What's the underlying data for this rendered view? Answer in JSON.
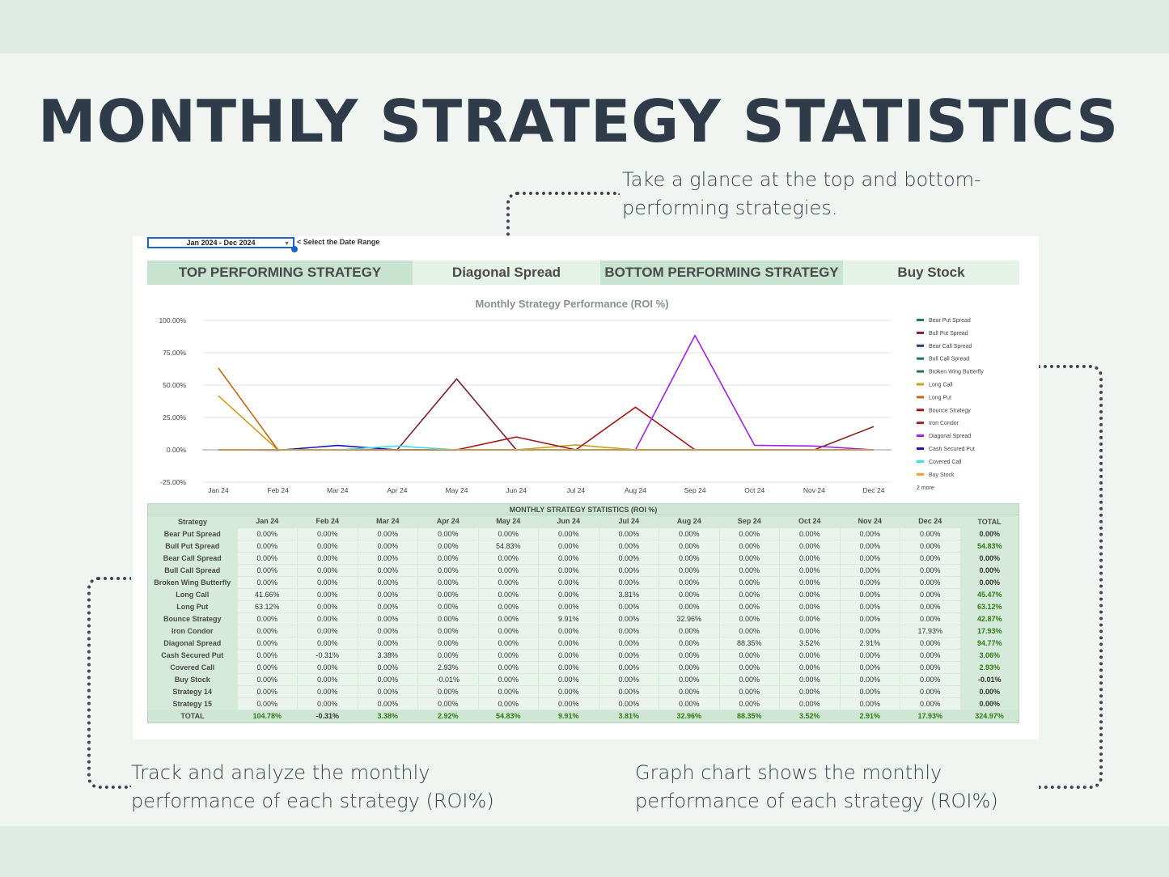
{
  "title": "MONTHLY STRATEGY STATISTICS",
  "captions": {
    "top": "Take a glance at the top and bottom-performing strategies.",
    "left": "Track and analyze the monthly performance of each strategy (ROI%)",
    "right": "Graph chart shows the monthly performance of each strategy (ROI%)"
  },
  "sheet": {
    "date_range_value": "Jan 2024 - Dec 2024",
    "date_range_hint": "< Select the Date Range",
    "top_label": "TOP PERFORMING STRATEGY",
    "top_value": "Diagonal Spread",
    "bottom_label": "BOTTOM PERFORMING STRATEGY",
    "bottom_value": "Buy Stock",
    "legend_more": "2 more"
  },
  "colors": {
    "background": "#f0f5f2",
    "band": "#e0ebe3",
    "banner_dark": "#c8e3d0",
    "banner_light": "#e5f2e8",
    "positive": "#4e9a2e",
    "negative": "#c00000"
  },
  "chart_data": {
    "type": "line",
    "title": "Monthly Strategy Performance (ROI %)",
    "categories": [
      "Jan 24",
      "Feb 24",
      "Mar 24",
      "Apr 24",
      "May 24",
      "Jun 24",
      "Jul 24",
      "Aug 24",
      "Sep 24",
      "Oct 24",
      "Nov 24",
      "Dec 24"
    ],
    "y_ticks": [
      "100.00%",
      "75.00%",
      "50.00%",
      "25.00%",
      "0.00%",
      "-25.00%"
    ],
    "ylim": [
      -25,
      100
    ],
    "grid": true,
    "legend_position": "right",
    "series": [
      {
        "name": "Bear Put Spread",
        "color": "#1e7b4f",
        "values": [
          0,
          0,
          0,
          0,
          0,
          0,
          0,
          0,
          0,
          0,
          0,
          0
        ]
      },
      {
        "name": "Bull Put Spread",
        "color": "#7b2233",
        "values": [
          0,
          0,
          0,
          0,
          54.83,
          0,
          0,
          0,
          0,
          0,
          0,
          0
        ]
      },
      {
        "name": "Bear Call Spread",
        "color": "#2e3a7a",
        "values": [
          0,
          0,
          0,
          0,
          0,
          0,
          0,
          0,
          0,
          0,
          0,
          0
        ]
      },
      {
        "name": "Bull Call Spread",
        "color": "#1f6d7d",
        "values": [
          0,
          0,
          0,
          0,
          0,
          0,
          0,
          0,
          0,
          0,
          0,
          0
        ]
      },
      {
        "name": "Broken Wing Butterfly",
        "color": "#2a6f6a",
        "values": [
          0,
          0,
          0,
          0,
          0,
          0,
          0,
          0,
          0,
          0,
          0,
          0
        ]
      },
      {
        "name": "Long Call",
        "color": "#c7a020",
        "values": [
          41.66,
          0,
          0,
          0,
          0,
          0,
          3.81,
          0,
          0,
          0,
          0,
          0
        ]
      },
      {
        "name": "Long Put",
        "color": "#c06a14",
        "values": [
          63.12,
          0,
          0,
          0,
          0,
          0,
          0,
          0,
          0,
          0,
          0,
          0
        ]
      },
      {
        "name": "Bounce Strategy",
        "color": "#a31616",
        "values": [
          0,
          0,
          0,
          0,
          0,
          9.91,
          0,
          32.96,
          0,
          0,
          0,
          0
        ]
      },
      {
        "name": "Iron Condor",
        "color": "#8b2a1e",
        "values": [
          0,
          0,
          0,
          0,
          0,
          0,
          0,
          0,
          0,
          0,
          0,
          17.93
        ]
      },
      {
        "name": "Diagonal Spread",
        "color": "#a020f0",
        "values": [
          0,
          0,
          0,
          0,
          0,
          0,
          0,
          0,
          88.35,
          3.52,
          2.91,
          0
        ]
      },
      {
        "name": "Cash Secured Put",
        "color": "#1414c8",
        "values": [
          0,
          -0.31,
          3.38,
          0,
          0,
          0,
          0,
          0,
          0,
          0,
          0,
          0
        ]
      },
      {
        "name": "Covered Call",
        "color": "#33e0f0",
        "values": [
          0,
          0,
          0,
          2.93,
          0,
          0,
          0,
          0,
          0,
          0,
          0,
          0
        ]
      },
      {
        "name": "Buy Stock",
        "color": "#f0a030",
        "values": [
          0,
          0,
          0,
          -0.01,
          0,
          0,
          0,
          0,
          0,
          0,
          0,
          0
        ]
      }
    ]
  },
  "table": {
    "title": "MONTHLY STRATEGY STATISTICS (ROI %)",
    "headers": [
      "Strategy",
      "Jan 24",
      "Feb 24",
      "Mar 24",
      "Apr 24",
      "May 24",
      "Jun 24",
      "Jul 24",
      "Aug 24",
      "Sep 24",
      "Oct 24",
      "Nov 24",
      "Dec 24",
      "TOTAL"
    ],
    "rows": [
      [
        "Bear Put Spread",
        "0.00%",
        "0.00%",
        "0.00%",
        "0.00%",
        "0.00%",
        "0.00%",
        "0.00%",
        "0.00%",
        "0.00%",
        "0.00%",
        "0.00%",
        "0.00%",
        "0.00%"
      ],
      [
        "Bull Put Spread",
        "0.00%",
        "0.00%",
        "0.00%",
        "0.00%",
        "54.83%",
        "0.00%",
        "0.00%",
        "0.00%",
        "0.00%",
        "0.00%",
        "0.00%",
        "0.00%",
        "54.83%"
      ],
      [
        "Bear Call Spread",
        "0.00%",
        "0.00%",
        "0.00%",
        "0.00%",
        "0.00%",
        "0.00%",
        "0.00%",
        "0.00%",
        "0.00%",
        "0.00%",
        "0.00%",
        "0.00%",
        "0.00%"
      ],
      [
        "Bull Call Spread",
        "0.00%",
        "0.00%",
        "0.00%",
        "0.00%",
        "0.00%",
        "0.00%",
        "0.00%",
        "0.00%",
        "0.00%",
        "0.00%",
        "0.00%",
        "0.00%",
        "0.00%"
      ],
      [
        "Broken Wing Butterfly",
        "0.00%",
        "0.00%",
        "0.00%",
        "0.00%",
        "0.00%",
        "0.00%",
        "0.00%",
        "0.00%",
        "0.00%",
        "0.00%",
        "0.00%",
        "0.00%",
        "0.00%"
      ],
      [
        "Long Call",
        "41.66%",
        "0.00%",
        "0.00%",
        "0.00%",
        "0.00%",
        "0.00%",
        "3.81%",
        "0.00%",
        "0.00%",
        "0.00%",
        "0.00%",
        "0.00%",
        "45.47%"
      ],
      [
        "Long Put",
        "63.12%",
        "0.00%",
        "0.00%",
        "0.00%",
        "0.00%",
        "0.00%",
        "0.00%",
        "0.00%",
        "0.00%",
        "0.00%",
        "0.00%",
        "0.00%",
        "63.12%"
      ],
      [
        "Bounce Strategy",
        "0.00%",
        "0.00%",
        "0.00%",
        "0.00%",
        "0.00%",
        "9.91%",
        "0.00%",
        "32.96%",
        "0.00%",
        "0.00%",
        "0.00%",
        "0.00%",
        "42.87%"
      ],
      [
        "Iron Condor",
        "0.00%",
        "0.00%",
        "0.00%",
        "0.00%",
        "0.00%",
        "0.00%",
        "0.00%",
        "0.00%",
        "0.00%",
        "0.00%",
        "0.00%",
        "17.93%",
        "17.93%"
      ],
      [
        "Diagonal Spread",
        "0.00%",
        "0.00%",
        "0.00%",
        "0.00%",
        "0.00%",
        "0.00%",
        "0.00%",
        "0.00%",
        "88.35%",
        "3.52%",
        "2.91%",
        "0.00%",
        "94.77%"
      ],
      [
        "Cash Secured Put",
        "0.00%",
        "-0.31%",
        "3.38%",
        "0.00%",
        "0.00%",
        "0.00%",
        "0.00%",
        "0.00%",
        "0.00%",
        "0.00%",
        "0.00%",
        "0.00%",
        "3.06%"
      ],
      [
        "Covered Call",
        "0.00%",
        "0.00%",
        "0.00%",
        "2.93%",
        "0.00%",
        "0.00%",
        "0.00%",
        "0.00%",
        "0.00%",
        "0.00%",
        "0.00%",
        "0.00%",
        "2.93%"
      ],
      [
        "Buy Stock",
        "0.00%",
        "0.00%",
        "0.00%",
        "-0.01%",
        "0.00%",
        "0.00%",
        "0.00%",
        "0.00%",
        "0.00%",
        "0.00%",
        "0.00%",
        "0.00%",
        "-0.01%"
      ],
      [
        "Strategy 14",
        "0.00%",
        "0.00%",
        "0.00%",
        "0.00%",
        "0.00%",
        "0.00%",
        "0.00%",
        "0.00%",
        "0.00%",
        "0.00%",
        "0.00%",
        "0.00%",
        "0.00%"
      ],
      [
        "Strategy 15",
        "0.00%",
        "0.00%",
        "0.00%",
        "0.00%",
        "0.00%",
        "0.00%",
        "0.00%",
        "0.00%",
        "0.00%",
        "0.00%",
        "0.00%",
        "0.00%",
        "0.00%"
      ]
    ],
    "total_row": [
      "TOTAL",
      "104.78%",
      "-0.31%",
      "3.38%",
      "2.92%",
      "54.83%",
      "9.91%",
      "3.81%",
      "32.96%",
      "88.35%",
      "3.52%",
      "2.91%",
      "17.93%",
      "324.97%"
    ]
  }
}
